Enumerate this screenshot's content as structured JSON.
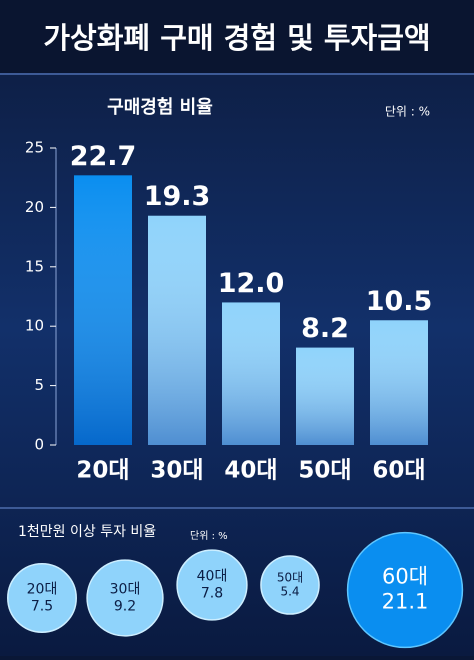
{
  "title": "가상화폐 구매 경험 및 투자금액",
  "chart_data": [
    {
      "type": "bar",
      "title": "구매경험 비율",
      "unit": "단위 : %",
      "categories": [
        "20대",
        "30대",
        "40대",
        "50대",
        "60대"
      ],
      "values": [
        22.7,
        19.3,
        12.0,
        8.2,
        10.5
      ],
      "value_labels": [
        "22.7",
        "19.3",
        "12.0",
        "8.2",
        "10.5"
      ],
      "colors": [
        "#0a8ef0",
        "#8fd3fb",
        "#8fd3fb",
        "#8fd3fb",
        "#8fd3fb"
      ],
      "ylim": [
        0,
        25
      ],
      "yticks": [
        0,
        5,
        10,
        15,
        20,
        25
      ],
      "grid": false
    },
    {
      "type": "bubble",
      "title": "1천만원 이상 투자 비율",
      "unit": "단위 : %",
      "categories": [
        "20대",
        "30대",
        "40대",
        "50대",
        "60대"
      ],
      "values": [
        7.5,
        9.2,
        7.8,
        5.4,
        21.1
      ],
      "colors": [
        "#8fd3fb",
        "#8fd3fb",
        "#8fd3fb",
        "#8fd3fb",
        "#0a8ef0"
      ]
    }
  ]
}
